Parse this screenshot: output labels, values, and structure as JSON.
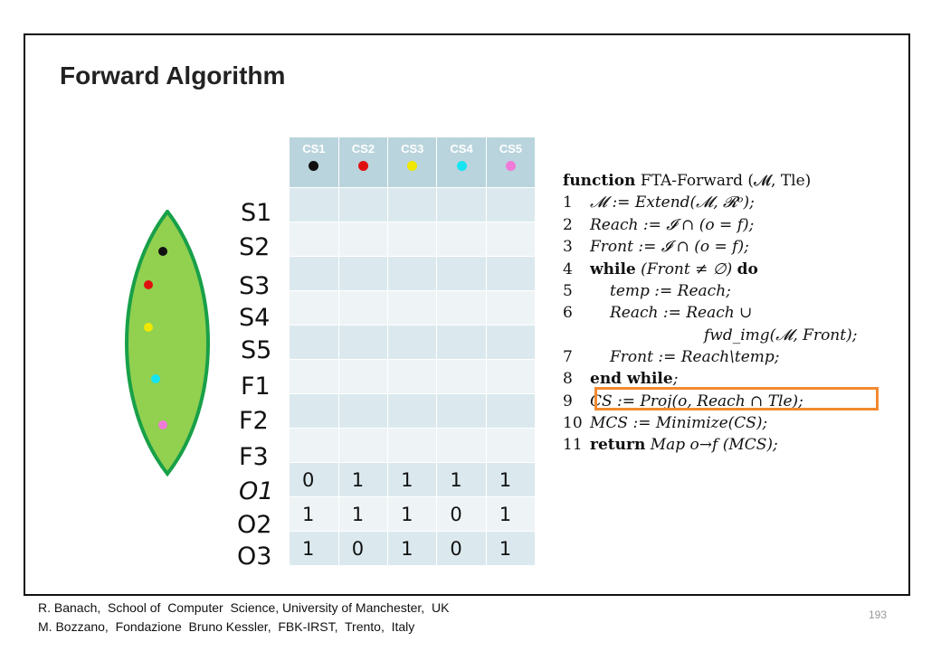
{
  "title": "Forward Algorithm",
  "colors": {
    "black": "#111111",
    "red": "#e01010",
    "yellow": "#f0e800",
    "cyan": "#17e4f2",
    "pink": "#f07ad8",
    "leaf_fill": "#92d050",
    "leaf_stroke": "#18a048",
    "highlight": "#f28a30"
  },
  "states": [
    "S1",
    "S2",
    "S3",
    "S4",
    "S5",
    "F1",
    "F2",
    "F3",
    "O1",
    "O2",
    "O3"
  ],
  "table": {
    "headers": [
      {
        "label": "CS1",
        "dot": "#111111"
      },
      {
        "label": "CS2",
        "dot": "#e01010"
      },
      {
        "label": "CS3",
        "dot": "#f0e800"
      },
      {
        "label": "CS4",
        "dot": "#17e4f2"
      },
      {
        "label": "CS5",
        "dot": "#f07ad8"
      }
    ],
    "rows": [
      [
        "",
        "",
        "",
        "",
        ""
      ],
      [
        "",
        "",
        "",
        "",
        ""
      ],
      [
        "",
        "",
        "",
        "",
        ""
      ],
      [
        "",
        "",
        "",
        "",
        ""
      ],
      [
        "",
        "",
        "",
        "",
        ""
      ],
      [
        "",
        "",
        "",
        "",
        ""
      ],
      [
        "",
        "",
        "",
        "",
        ""
      ],
      [
        "",
        "",
        "",
        "",
        ""
      ],
      [
        "0",
        "1",
        "1",
        "1",
        "1"
      ],
      [
        "1",
        "1",
        "1",
        "0",
        "1"
      ],
      [
        "1",
        "0",
        "1",
        "0",
        "1"
      ]
    ]
  },
  "algorithm": {
    "header_keyword": "function",
    "header_text": "FTA-Forward (𝓜, Tle)",
    "lines": [
      {
        "num": "1",
        "text": "𝓜 := Extend(𝓜, 𝓡ᵒ);"
      },
      {
        "num": "2",
        "text": "Reach := 𝓘 ∩ (o = f);"
      },
      {
        "num": "3",
        "text": "Front := 𝓘 ∩ (o = f);"
      },
      {
        "num": "4",
        "keyword": "while",
        "text": "(Front ≠ ∅)",
        "keyword2": "do"
      },
      {
        "num": "5",
        "text": "temp := Reach;"
      },
      {
        "num": "6",
        "text": "Reach := Reach ∪"
      },
      {
        "num": "",
        "text": "fwd_img(𝓜, Front);"
      },
      {
        "num": "7",
        "text": "Front := Reach\\temp;"
      },
      {
        "num": "8",
        "keyword": "end while",
        "text": ";"
      },
      {
        "num": "9",
        "text": "CS := Proj(o, Reach ∩ Tle);"
      },
      {
        "num": "10",
        "text": "MCS := Minimize(CS);"
      },
      {
        "num": "11",
        "keyword": "return",
        "text": "Map o→f (MCS);"
      }
    ]
  },
  "footer": {
    "line1": "R. Banach,  School of  Computer  Science, University of Manchester,  UK",
    "line2": "M. Bozzano,  Fondazione  Bruno Kessler,  FBK-IRST,  Trento,  Italy"
  },
  "page_number": "193"
}
